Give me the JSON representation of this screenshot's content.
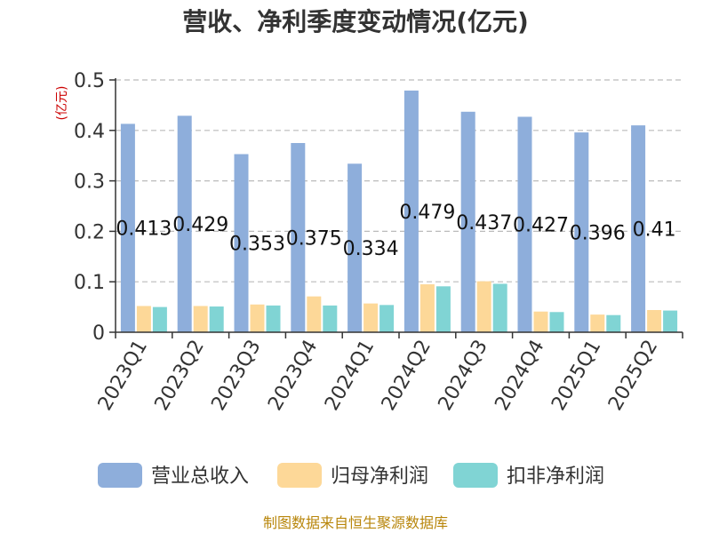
{
  "chart_data": {
    "type": "bar",
    "title": "营收、净利季度变动情况(亿元)",
    "unit_label": "(亿元)",
    "categories": [
      "2023Q1",
      "2023Q2",
      "2023Q3",
      "2023Q4",
      "2024Q1",
      "2024Q2",
      "2024Q3",
      "2024Q4",
      "2025Q1",
      "2025Q2"
    ],
    "series": [
      {
        "name": "营业总收入",
        "color": "#8eaedb",
        "values": [
          0.413,
          0.429,
          0.353,
          0.375,
          0.334,
          0.479,
          0.437,
          0.427,
          0.396,
          0.41
        ],
        "labels": [
          "0.413",
          "0.429",
          "0.353",
          "0.375",
          "0.334",
          "0.479",
          "0.437",
          "0.427",
          "0.396",
          "0.41"
        ]
      },
      {
        "name": "归母净利润",
        "color": "#fdd898",
        "values": [
          0.052,
          0.052,
          0.055,
          0.071,
          0.057,
          0.095,
          0.101,
          0.041,
          0.035,
          0.044
        ]
      },
      {
        "name": "扣非净利润",
        "color": "#80d4d4",
        "values": [
          0.05,
          0.051,
          0.053,
          0.053,
          0.054,
          0.091,
          0.096,
          0.04,
          0.034,
          0.043
        ]
      }
    ],
    "yticks": [
      "0",
      "0.1",
      "0.2",
      "0.3",
      "0.4",
      "0.5"
    ],
    "ylim": [
      0,
      0.5
    ],
    "grid": true,
    "legend_position": "bottom"
  },
  "source": "制图数据来自恒生聚源数据库"
}
